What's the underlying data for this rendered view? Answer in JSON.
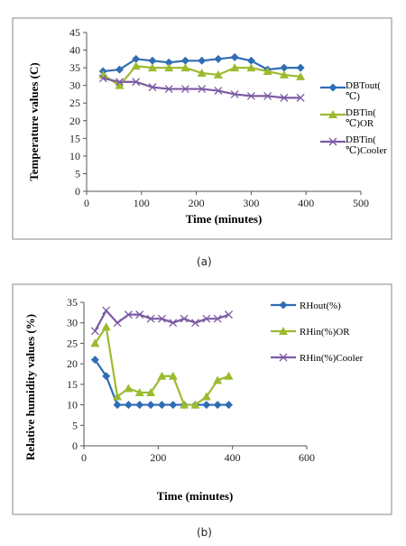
{
  "chart_data": [
    {
      "id": "a",
      "type": "line",
      "xlabel": "Time (minutes)",
      "ylabel": "Temperature values (C)",
      "xlim": [
        0,
        500
      ],
      "ylim": [
        0,
        45
      ],
      "xticks": [
        0,
        100,
        200,
        300,
        400,
        500
      ],
      "yticks": [
        0,
        5,
        10,
        15,
        20,
        25,
        30,
        35,
        40,
        45
      ],
      "legend_position": "right",
      "grid": false,
      "x": [
        30,
        60,
        90,
        120,
        150,
        180,
        210,
        240,
        270,
        300,
        330,
        360,
        390
      ],
      "series": [
        {
          "name": "DBTout(℃)",
          "marker": "diamond",
          "color": "#2f6db5",
          "values": [
            34,
            34.5,
            37.5,
            37,
            36.5,
            37,
            37,
            37.5,
            38,
            37,
            34.5,
            35,
            35
          ]
        },
        {
          "name": "DBTin(℃)OR",
          "marker": "triangle",
          "color": "#9bbb2f",
          "values": [
            33,
            30,
            35.5,
            35,
            35,
            35,
            33.5,
            33,
            35,
            35,
            34,
            33,
            32.5
          ]
        },
        {
          "name": "DBTin(℃)Cooler",
          "marker": "x",
          "color": "#7b5aa3",
          "values": [
            32,
            31,
            31,
            29.5,
            29,
            29,
            29,
            28.5,
            27.5,
            27,
            27,
            26.5,
            26.5
          ]
        }
      ]
    },
    {
      "id": "b",
      "type": "line",
      "xlabel": "Time (minutes)",
      "ylabel": "Relative humidity values (%)",
      "xlim": [
        0,
        600
      ],
      "ylim": [
        0,
        35
      ],
      "xticks": [
        0,
        200,
        400,
        600
      ],
      "yticks": [
        0,
        5,
        10,
        15,
        20,
        25,
        30,
        35
      ],
      "legend_position": "right",
      "grid": false,
      "x": [
        30,
        60,
        90,
        120,
        150,
        180,
        210,
        240,
        270,
        300,
        330,
        360,
        390
      ],
      "series": [
        {
          "name": "RHout(%)",
          "marker": "diamond",
          "color": "#2f6db5",
          "values": [
            21,
            17,
            10,
            10,
            10,
            10,
            10,
            10,
            10,
            10,
            10,
            10,
            10
          ]
        },
        {
          "name": "RHin(%)OR",
          "marker": "triangle",
          "color": "#9bbb2f",
          "values": [
            25,
            29,
            12,
            14,
            13,
            13,
            17,
            17,
            10,
            10,
            12,
            16,
            17
          ]
        },
        {
          "name": "RHin(%)Cooler",
          "marker": "x",
          "color": "#7b5aa3",
          "values": [
            28,
            33,
            30,
            32,
            32,
            31,
            31,
            30,
            31,
            30,
            31,
            31,
            32
          ]
        }
      ]
    }
  ],
  "captions": [
    "(a)",
    "(b)"
  ]
}
